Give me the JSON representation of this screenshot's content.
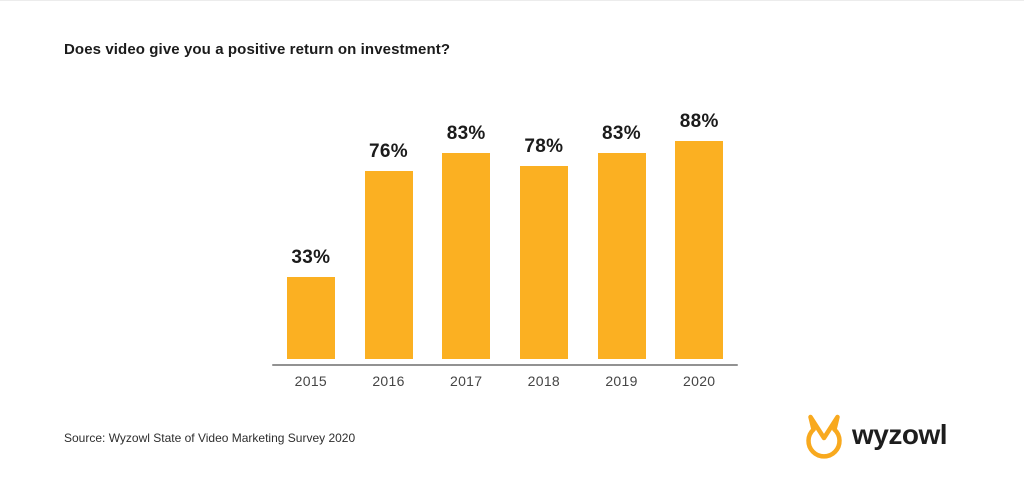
{
  "title": "Does video give you a positive return on investment?",
  "source_note": "Source: Wyzowl State of Video Marketing Survey 2020",
  "logo": {
    "text": "wyzowl",
    "icon": "wyzowl-owl-icon"
  },
  "colors": {
    "bar": "#FBB022",
    "axis_line": "#929292",
    "title_text": "#1B1B1B",
    "value_text": "#1B1B1B",
    "year_text": "#454545",
    "source_text": "#2E2E2E",
    "logo_icon": "#F8A91E",
    "logo_text": "#1D1D1D",
    "background": "#FFFFFF"
  },
  "chart_data": {
    "type": "bar",
    "categories": [
      "2015",
      "2016",
      "2017",
      "2018",
      "2019",
      "2020"
    ],
    "values": [
      33,
      76,
      83,
      78,
      83,
      88
    ],
    "value_labels": [
      "33%",
      "76%",
      "83%",
      "78%",
      "83%",
      "88%"
    ],
    "title": "Does video give you a positive return on investment?",
    "xlabel": "",
    "ylabel": "",
    "ylim": [
      0,
      100
    ],
    "grid": false,
    "legend": false,
    "bar_color": "#FBB022",
    "value_labels_position": "above-bars",
    "baseline_visible": true
  }
}
